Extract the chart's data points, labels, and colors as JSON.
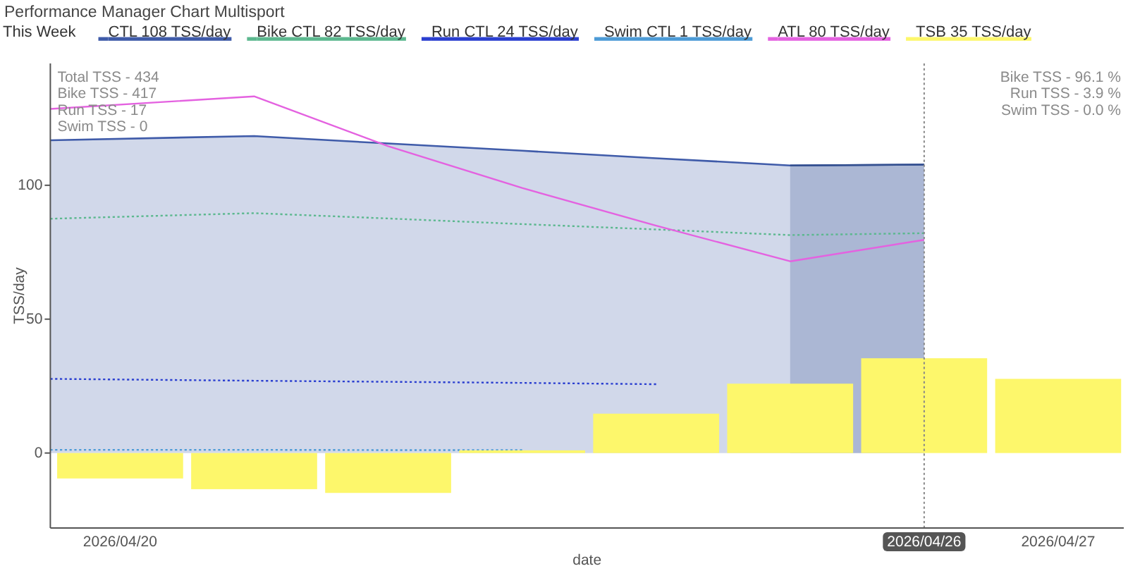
{
  "chart_data": {
    "type": "line",
    "title": "Performance Manager Chart Multisport",
    "xlabel": "date",
    "ylabel": "TSS/day",
    "legend_title": "This Week",
    "legend": "top",
    "xlim": [
      "2026-04-19T11:30",
      "2026-04-27T11:45"
    ],
    "xticks": [
      {
        "value": "2026-04-20",
        "label": "2026/04/20"
      },
      {
        "value": "2026-04-27",
        "label": "2026/04/27"
      }
    ],
    "ylim": [
      -28,
      145.5
    ],
    "yticks": [
      0,
      50,
      100
    ],
    "x": [
      "2026-04-19T11:30",
      "2026-04-21",
      "2026-04-22",
      "2026-04-23",
      "2026-04-24",
      "2026-04-25",
      "2026-04-26"
    ],
    "series": [
      {
        "name": "CTL 108 TSS/day",
        "type": "area",
        "color": "#3f5ba9",
        "values": [
          116.8,
          118.4,
          115.6,
          112.9,
          110.1,
          107.4,
          107.7
        ]
      },
      {
        "type": "area",
        "color": "#34508f",
        "x": [
          "2026-04-25",
          "2026-04-26"
        ],
        "values": [
          107.4,
          107.7
        ]
      },
      {
        "name": "Bike CTL 82 TSS/day",
        "color": "#5cb88f",
        "line_style": "dotted",
        "values": [
          87.5,
          89.6,
          87.6,
          85.5,
          83.5,
          81.4,
          82.1
        ]
      },
      {
        "name": "Run CTL 24 TSS/day",
        "color": "#2b3fd0",
        "line_style": "dotted",
        "values": [
          27.7,
          27.0,
          26.6,
          26.2,
          25.7,
          null,
          null
        ]
      },
      {
        "name": "Swim CTL 1 TSS/day",
        "color": "#4d9bd6",
        "line_style": "dotted",
        "values": [
          1.2,
          1.2,
          1.1,
          1.1,
          null,
          null,
          null
        ]
      },
      {
        "name": "ATL 80 TSS/day",
        "color": "#e462e0",
        "values": [
          128.5,
          133.2,
          114.6,
          99.0,
          84.9,
          71.6,
          79.6
        ]
      },
      {
        "name": "TSB 35 TSS/day",
        "type": "bar",
        "color": "#fdf76b",
        "x": [
          "2026-04-20",
          "2026-04-21",
          "2026-04-22",
          "2026-04-23",
          "2026-04-24",
          "2026-04-25",
          "2026-04-26",
          "2026-04-27"
        ],
        "values": [
          -9.5,
          -13.5,
          -14.9,
          1.0,
          14.7,
          25.9,
          35.4,
          27.7
        ]
      }
    ],
    "ref_lines": [
      {
        "axis": "x",
        "value": "2026-04-26",
        "label": "2026/04/26",
        "line_style": "dotted",
        "color": "#888888"
      }
    ],
    "annotations": [
      "Total TSS - 434\nBike TSS - 417\nRun TSS - 17\nSwim TSS - 0",
      "Bike TSS - 96.1 %\nRun TSS - 3.9 %\nSwim TSS - 0.0 %"
    ]
  }
}
